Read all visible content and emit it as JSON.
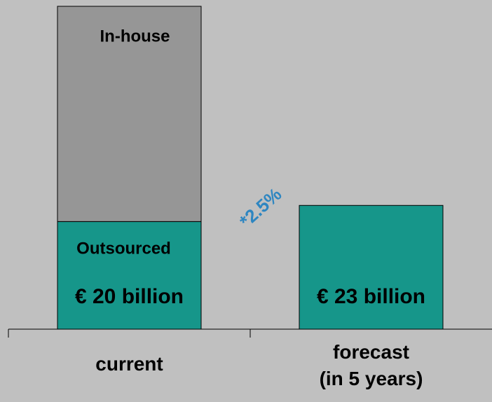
{
  "chart_data": {
    "type": "stacked_bar",
    "categories": [
      "current",
      "forecast\n(in 5 years)"
    ],
    "series": [
      {
        "name": "Outsourced",
        "color": "#16968a",
        "values": [
          20,
          23
        ],
        "value_labels": [
          "€ 20 billion",
          "€ 23 billion"
        ]
      },
      {
        "name": "In-house",
        "color": "#969696",
        "values": [
          40,
          null
        ]
      }
    ],
    "ylim": [
      0,
      60
    ],
    "annotation": "*2.5%"
  }
}
